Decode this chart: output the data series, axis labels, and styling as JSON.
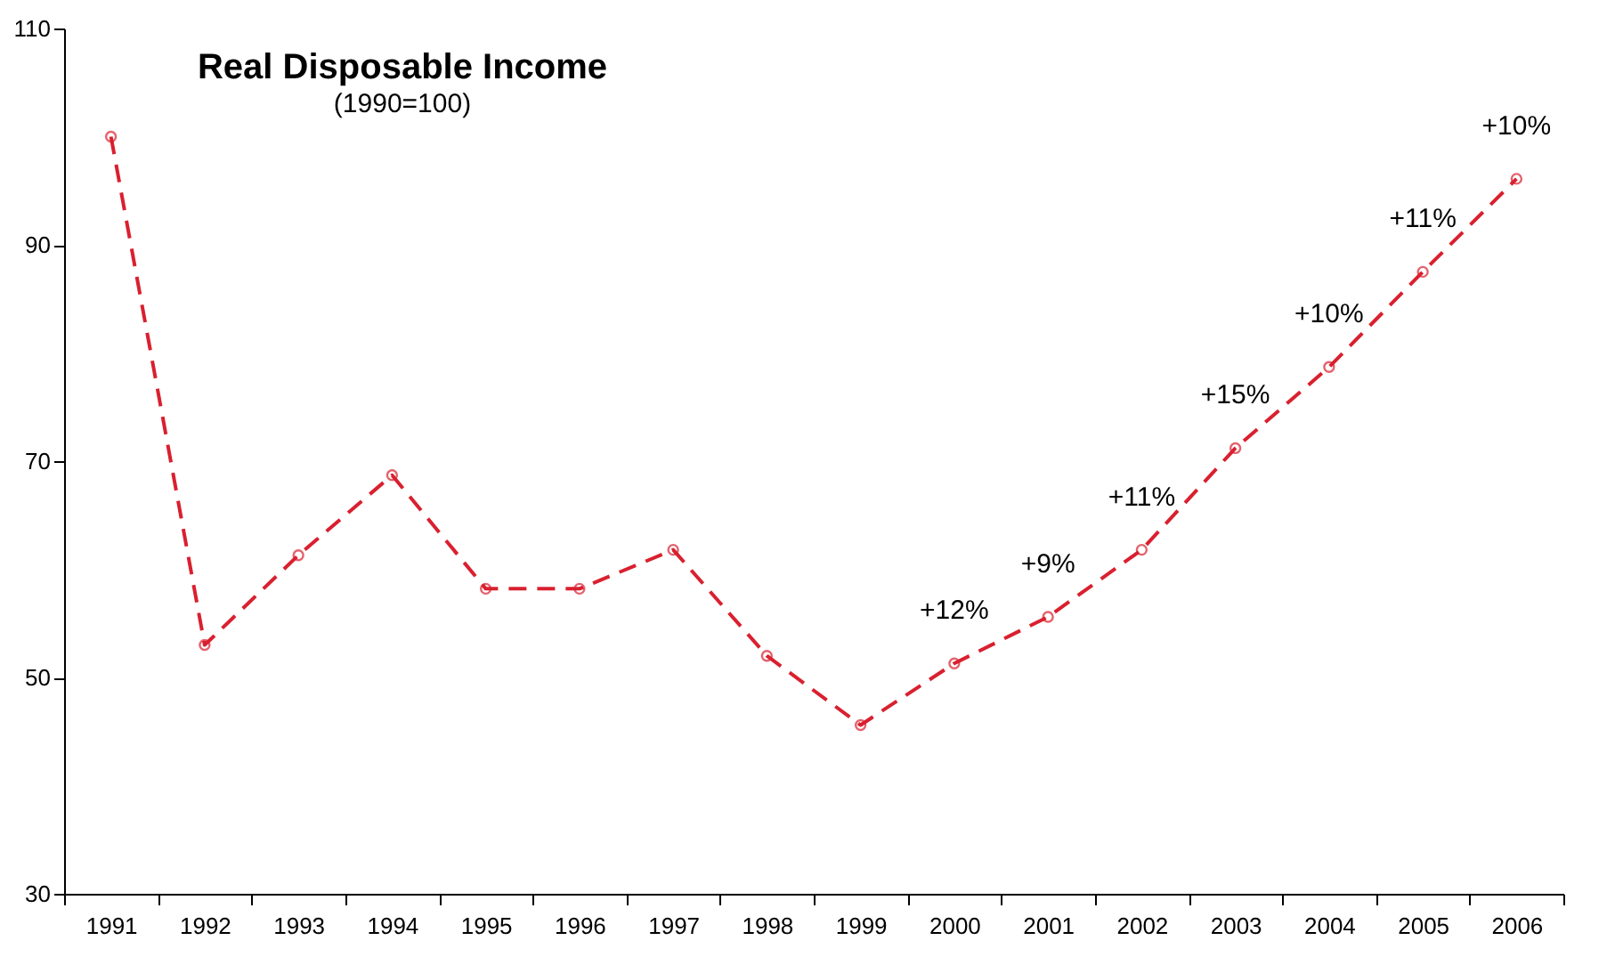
{
  "chart_data": {
    "type": "line",
    "title": "Real Disposable Income",
    "subtitle": "(1990=100)",
    "categories": [
      "1991",
      "1992",
      "1993",
      "1994",
      "1995",
      "1996",
      "1997",
      "1998",
      "1999",
      "2000",
      "2001",
      "2002",
      "2003",
      "2004",
      "2005",
      "2006"
    ],
    "series": [
      {
        "color": "#d9202f",
        "values": [
          100,
          53,
          61.3,
          68.7,
          58.2,
          58.2,
          61.8,
          52,
          45.6,
          51.3,
          55.6,
          61.8,
          71.2,
          78.7,
          87.5,
          96.1
        ]
      }
    ],
    "ylim": [
      30,
      110
    ],
    "yticks": [
      30,
      50,
      70,
      90,
      110
    ],
    "grid": false,
    "legend": false,
    "marker": "circle",
    "line_style": "dashed",
    "annotations": [
      {
        "text": "+12%",
        "x": "2000",
        "y": 51.3
      },
      {
        "text": "+9%",
        "x": "2001",
        "y": 55.6
      },
      {
        "text": "+11%",
        "x": "2002",
        "y": 61.8
      },
      {
        "text": "+15%",
        "x": "2003",
        "y": 71.2
      },
      {
        "text": "+10%",
        "x": "2004",
        "y": 78.7
      },
      {
        "text": "+11%",
        "x": "2005",
        "y": 87.5
      },
      {
        "text": "+10%",
        "x": "2006",
        "y": 96.1
      }
    ]
  }
}
